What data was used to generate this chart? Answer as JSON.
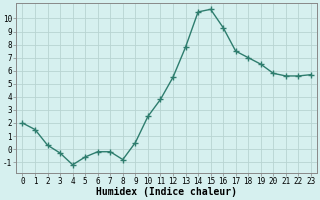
{
  "x": [
    0,
    1,
    2,
    3,
    4,
    5,
    6,
    7,
    8,
    9,
    10,
    11,
    12,
    13,
    14,
    15,
    16,
    17,
    18,
    19,
    20,
    21,
    22,
    23
  ],
  "y": [
    2.0,
    1.5,
    0.3,
    -0.3,
    -1.2,
    -0.6,
    -0.2,
    -0.2,
    -0.8,
    0.5,
    2.5,
    3.8,
    5.5,
    7.8,
    10.5,
    10.7,
    9.3,
    7.5,
    7.0,
    6.5,
    5.8,
    5.6,
    5.6,
    5.7
  ],
  "line_color": "#2e7d6e",
  "marker": "+",
  "marker_size": 4,
  "bg_color": "#d6f0ef",
  "grid_color": "#b8d4d2",
  "axis_color": "#888888",
  "xlabel": "Humidex (Indice chaleur)",
  "xlim": [
    -0.5,
    23.5
  ],
  "ylim": [
    -1.8,
    11.2
  ],
  "yticks": [
    -1,
    0,
    1,
    2,
    3,
    4,
    5,
    6,
    7,
    8,
    9,
    10
  ],
  "xticks": [
    0,
    1,
    2,
    3,
    4,
    5,
    6,
    7,
    8,
    9,
    10,
    11,
    12,
    13,
    14,
    15,
    16,
    17,
    18,
    19,
    20,
    21,
    22,
    23
  ],
  "tick_fontsize": 5.5,
  "xlabel_fontsize": 7.0,
  "line_width": 1.0
}
